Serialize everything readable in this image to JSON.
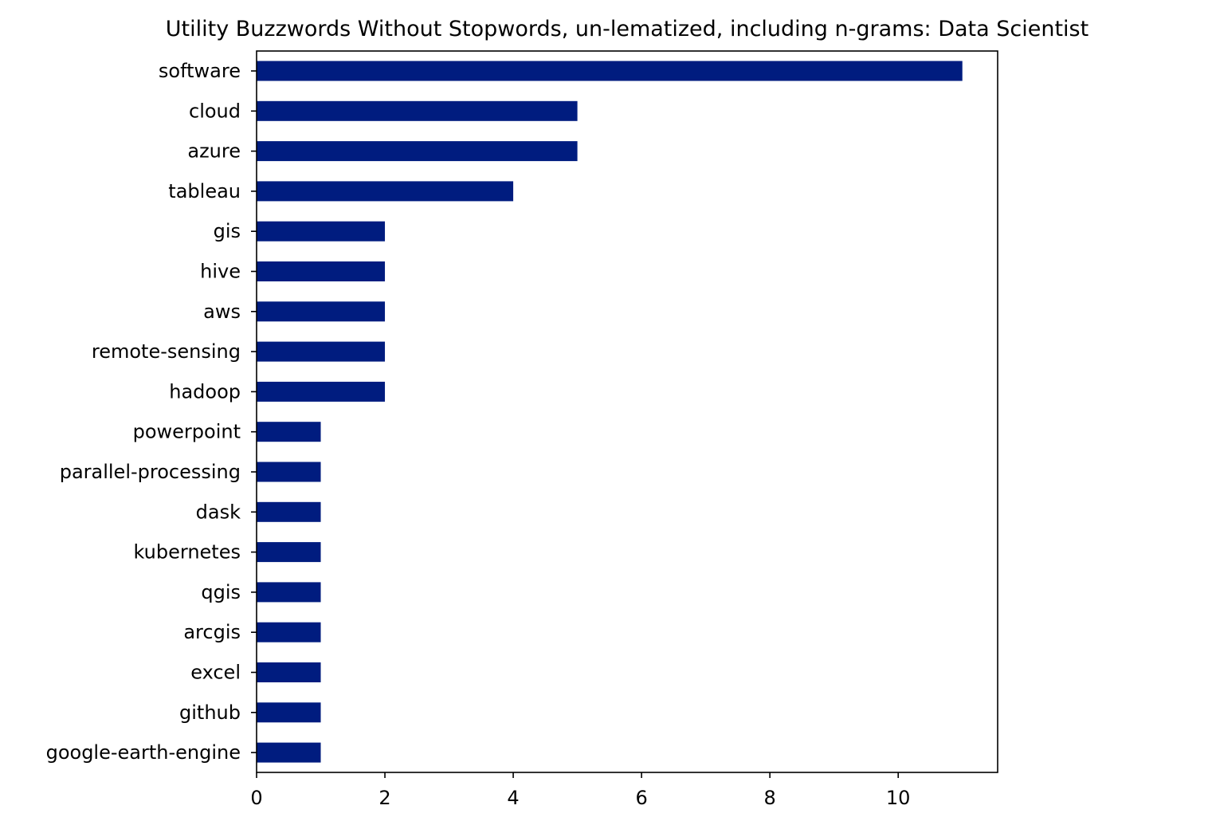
{
  "chart_data": {
    "type": "bar",
    "orientation": "horizontal",
    "title": "Utility Buzzwords Without Stopwords, un-lematized, including n-grams: Data Scientist",
    "xlabel": "",
    "ylabel": "",
    "categories": [
      "software",
      "cloud",
      "azure",
      "tableau",
      "gis",
      "hive",
      "aws",
      "remote-sensing",
      "hadoop",
      "powerpoint",
      "parallel-processing",
      "dask",
      "kubernetes",
      "qgis",
      "arcgis",
      "excel",
      "github",
      "google-earth-engine"
    ],
    "values": [
      11,
      5,
      5,
      4,
      2,
      2,
      2,
      2,
      2,
      1,
      1,
      1,
      1,
      1,
      1,
      1,
      1,
      1
    ],
    "xlim": [
      0,
      11.55
    ],
    "xticks": [
      0,
      2,
      4,
      6,
      8,
      10
    ],
    "grid": false,
    "legend": "none",
    "bar_color": "#001c7f"
  }
}
